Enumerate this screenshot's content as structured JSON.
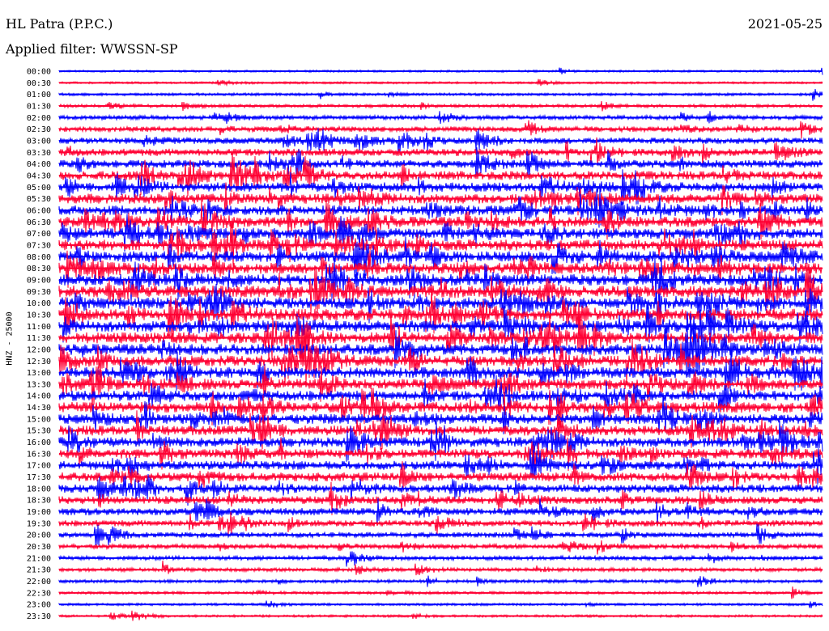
{
  "header": {
    "station": "HL Patra (P.P.C.)",
    "filter": "Applied filter: WWSSN-SP",
    "date": "2021-05-25"
  },
  "chart_data": {
    "type": "line",
    "title": "HL Patra (P.P.C.)",
    "subtitle": "Applied filter: WWSSN-SP",
    "date": "2021-05-25",
    "ylabel": "HNZ - 25000",
    "trace_colors": [
      "#0000ff",
      "#ff0033"
    ],
    "row_labels": [
      "00:00",
      "00:30",
      "01:00",
      "01:30",
      "02:00",
      "02:30",
      "03:00",
      "03:30",
      "04:00",
      "04:30",
      "05:00",
      "05:30",
      "06:00",
      "06:30",
      "07:00",
      "07:30",
      "08:00",
      "08:30",
      "09:00",
      "09:30",
      "10:00",
      "10:30",
      "11:00",
      "11:30",
      "12:00",
      "12:30",
      "13:00",
      "13:30",
      "14:00",
      "14:30",
      "15:00",
      "15:30",
      "16:00",
      "16:30",
      "17:00",
      "17:30",
      "18:00",
      "18:30",
      "19:00",
      "19:30",
      "20:00",
      "20:30",
      "21:00",
      "21:30",
      "22:00",
      "22:30",
      "23:00",
      "23:30"
    ],
    "relative_noise_level": [
      0.05,
      0.05,
      0.1,
      0.15,
      0.25,
      0.35,
      0.45,
      0.55,
      0.6,
      0.7,
      0.75,
      0.8,
      0.8,
      0.85,
      0.85,
      0.9,
      0.9,
      0.9,
      0.95,
      0.95,
      0.95,
      0.95,
      0.95,
      0.9,
      0.9,
      0.9,
      0.9,
      0.85,
      0.85,
      0.85,
      0.8,
      0.8,
      0.8,
      0.75,
      0.7,
      0.7,
      0.65,
      0.6,
      0.55,
      0.45,
      0.35,
      0.3,
      0.25,
      0.2,
      0.15,
      0.1,
      0.08,
      0.08
    ]
  }
}
